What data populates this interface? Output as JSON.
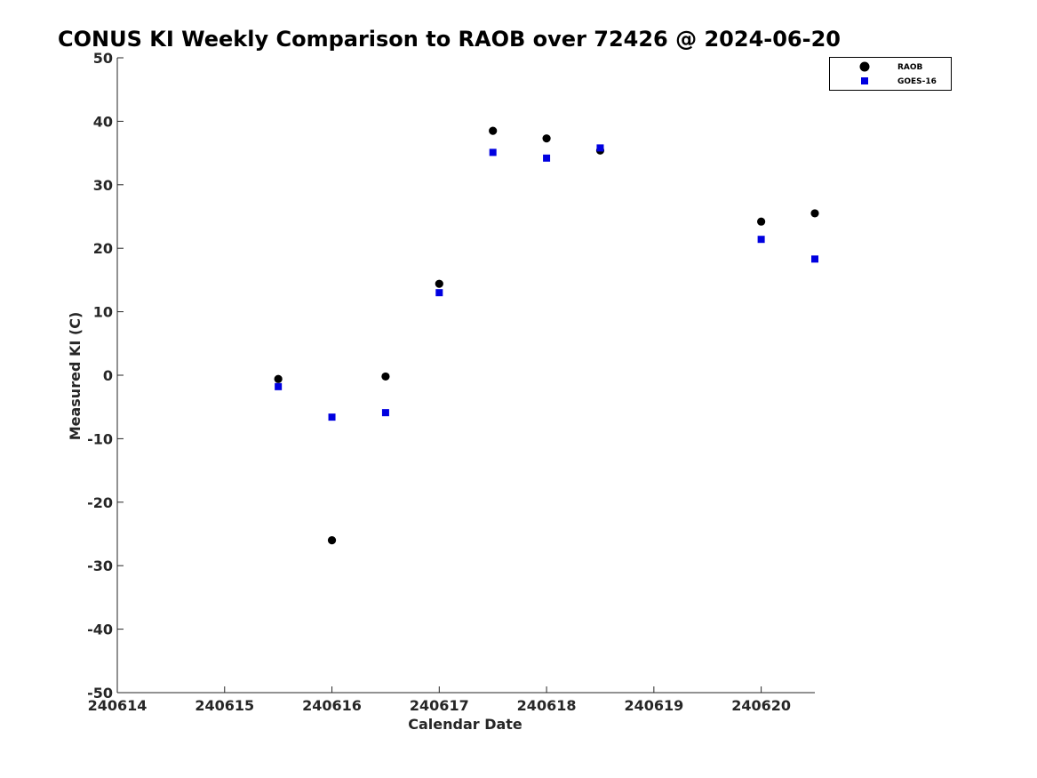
{
  "chart_data": {
    "type": "scatter",
    "title": "CONUS KI Weekly Comparison to RAOB over 72426 @ 2024-06-20",
    "xlabel": "Calendar Date",
    "ylabel": "Measured KI (C)",
    "xlim": [
      240614,
      240620.5
    ],
    "ylim": [
      -50,
      50
    ],
    "xticks": [
      240614,
      240615,
      240616,
      240617,
      240618,
      240619,
      240620
    ],
    "xtick_labels": [
      "240614",
      "240615",
      "240616",
      "240617",
      "240618",
      "240619",
      "240620"
    ],
    "yticks": [
      -50,
      -40,
      -30,
      -20,
      -10,
      0,
      10,
      20,
      30,
      40,
      50
    ],
    "ytick_labels": [
      "-50",
      "-40",
      "-30",
      "-20",
      "-10",
      "0",
      "10",
      "20",
      "30",
      "40",
      "50"
    ],
    "grid": false,
    "legend_position": "top-right",
    "series": [
      {
        "name": "RAOB",
        "marker": "circle",
        "color": "#000000",
        "x": [
          240615.5,
          240616,
          240616.5,
          240617,
          240617.5,
          240618,
          240618.5,
          240620,
          240620.5
        ],
        "y": [
          -0.6,
          -26,
          -0.2,
          14.4,
          38.5,
          37.3,
          35.4,
          24.2,
          25.5
        ]
      },
      {
        "name": "GOES-16",
        "marker": "square",
        "color": "#0000e0",
        "x": [
          240615.5,
          240616,
          240616.5,
          240617,
          240617.5,
          240618,
          240618.5,
          240620,
          240620.5
        ],
        "y": [
          -1.8,
          -6.6,
          -5.9,
          13,
          35.1,
          34.2,
          35.8,
          21.4,
          18.3
        ]
      }
    ]
  }
}
